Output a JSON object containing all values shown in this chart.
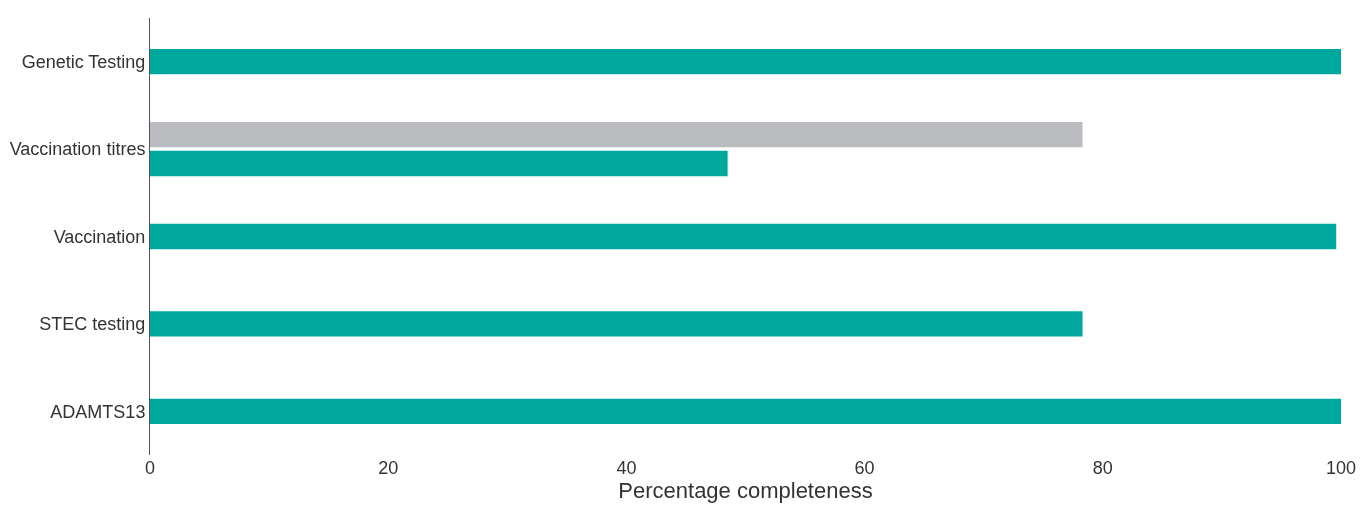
{
  "chart_data": {
    "type": "bar",
    "orientation": "horizontal",
    "xlabel": "Percentage completeness",
    "categories": [
      "Genetic Testing",
      "Vaccination titres",
      "Vaccination",
      "STEC testing",
      "ADAMTS13"
    ],
    "series": [
      {
        "color": "#bbbcc0",
        "values": [
          null,
          78.3,
          null,
          null,
          null
        ]
      },
      {
        "color": "#00a79d",
        "values": [
          100,
          48.5,
          99.6,
          78.3,
          100
        ]
      }
    ],
    "xlim": [
      0,
      100
    ],
    "xticks": [
      0,
      20,
      40,
      60,
      80,
      100
    ]
  }
}
